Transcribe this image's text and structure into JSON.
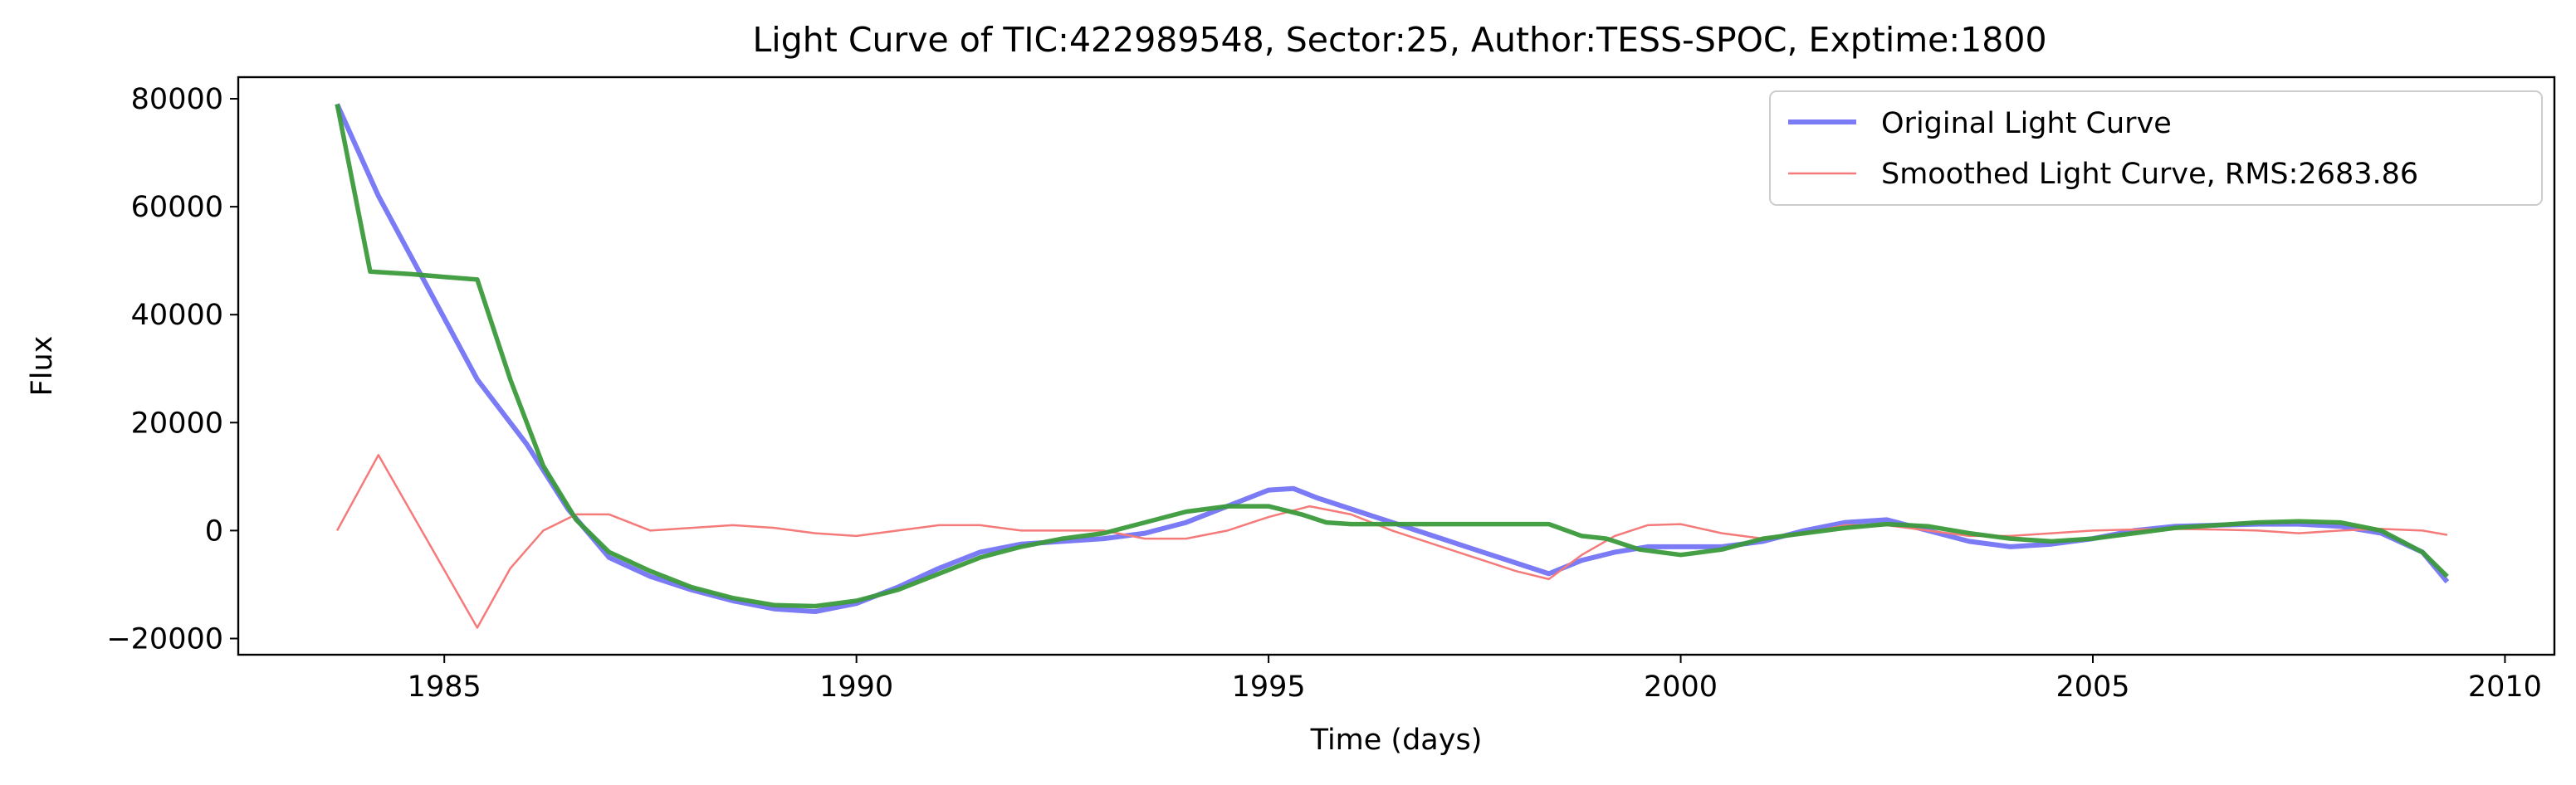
{
  "chart_data": {
    "type": "line",
    "title": "Light Curve of TIC:422989548, Sector:25, Author:TESS-SPOC, Exptime:1800",
    "xlabel": "Time (days)",
    "ylabel": "Flux",
    "xlim": [
      1982.5,
      2010.6
    ],
    "ylim": [
      -23000,
      84000
    ],
    "xticks": [
      1985,
      1990,
      1995,
      2000,
      2005,
      2010
    ],
    "yticks": [
      -20000,
      0,
      20000,
      40000,
      60000,
      80000
    ],
    "grid": false,
    "legend_position": "top-right",
    "series": [
      {
        "name": "Original Light Curve",
        "color": "#7b7bf5",
        "x": [
          1983.7,
          1984.2,
          1984.8,
          1985.4,
          1986.0,
          1986.5,
          1987.0,
          1987.5,
          1988.0,
          1988.5,
          1989.0,
          1989.5,
          1990.0,
          1990.5,
          1991.0,
          1991.5,
          1992.0,
          1992.5,
          1993.0,
          1993.5,
          1994.0,
          1994.5,
          1995.0,
          1995.3,
          1995.6,
          1996.0,
          1996.5,
          1997.0,
          1997.5,
          1998.0,
          1998.4,
          1998.8,
          1999.2,
          1999.6,
          2000.0,
          2000.5,
          2001.0,
          2001.5,
          2002.0,
          2002.5,
          2003.0,
          2003.5,
          2004.0,
          2004.5,
          2005.0,
          2005.5,
          2006.0,
          2006.5,
          2007.0,
          2007.5,
          2008.0,
          2008.5,
          2009.0,
          2009.3
        ],
        "y": [
          79000,
          62000,
          45000,
          28000,
          16000,
          4000,
          -5000,
          -8500,
          -11000,
          -13000,
          -14500,
          -15000,
          -13500,
          -10500,
          -7000,
          -4000,
          -2500,
          -2000,
          -1500,
          -500,
          1500,
          4500,
          7500,
          7800,
          6000,
          4000,
          1500,
          -1000,
          -3500,
          -6000,
          -8000,
          -5500,
          -4000,
          -3000,
          -3000,
          -3000,
          -2000,
          0,
          1500,
          2000,
          0,
          -2000,
          -3000,
          -2500,
          -1500,
          0,
          800,
          1000,
          1200,
          1200,
          800,
          -500,
          -4000,
          -9500
        ]
      },
      {
        "name": "Smoothed Light Curve, RMS:2683.86",
        "color": "#f57a7a",
        "x": [
          1983.7,
          1984.2,
          1984.8,
          1985.4,
          1985.8,
          1986.2,
          1986.6,
          1987.0,
          1987.5,
          1988.0,
          1988.5,
          1989.0,
          1989.5,
          1990.0,
          1990.5,
          1991.0,
          1991.5,
          1992.0,
          1992.5,
          1993.0,
          1993.5,
          1994.0,
          1994.5,
          1995.0,
          1995.5,
          1996.0,
          1996.5,
          1997.0,
          1997.5,
          1998.0,
          1998.4,
          1998.8,
          1999.2,
          1999.6,
          2000.0,
          2000.5,
          2001.0,
          2001.5,
          2002.0,
          2002.5,
          2003.0,
          2003.5,
          2004.0,
          2004.5,
          2005.0,
          2005.5,
          2006.0,
          2006.5,
          2007.0,
          2007.5,
          2008.0,
          2008.5,
          2009.0,
          2009.3
        ],
        "y": [
          0,
          14000,
          -2000,
          -18000,
          -7000,
          0,
          3000,
          3000,
          0,
          500,
          1000,
          500,
          -500,
          -1000,
          0,
          1000,
          1000,
          0,
          0,
          0,
          -1500,
          -1500,
          0,
          2500,
          4500,
          3000,
          0,
          -2500,
          -5000,
          -7500,
          -9000,
          -4500,
          -1000,
          1000,
          1200,
          -500,
          -1500,
          -500,
          1000,
          1000,
          0,
          -1000,
          -1000,
          -500,
          0,
          200,
          300,
          200,
          0,
          -500,
          0,
          300,
          0,
          -800
        ]
      },
      {
        "name": "",
        "color": "#3b9a3b",
        "x": [
          1983.7,
          1984.1,
          1984.6,
          1985.0,
          1985.4,
          1985.8,
          1986.2,
          1986.6,
          1987.0,
          1987.5,
          1988.0,
          1988.5,
          1989.0,
          1989.5,
          1990.0,
          1990.5,
          1991.0,
          1991.5,
          1992.0,
          1992.5,
          1993.0,
          1993.5,
          1994.0,
          1994.5,
          1995.0,
          1995.4,
          1995.7,
          1996.0,
          1996.5,
          1997.0,
          1997.5,
          1998.0,
          1998.4,
          1998.8,
          1999.1,
          1999.5,
          2000.0,
          2000.5,
          2001.0,
          2001.5,
          2002.0,
          2002.5,
          2003.0,
          2003.5,
          2004.0,
          2004.5,
          2005.0,
          2005.5,
          2006.0,
          2006.5,
          2007.0,
          2007.5,
          2008.0,
          2008.5,
          2009.0,
          2009.3
        ],
        "y": [
          79000,
          48000,
          47500,
          47000,
          46500,
          28000,
          12000,
          2000,
          -4000,
          -7500,
          -10500,
          -12500,
          -13800,
          -14000,
          -13000,
          -11000,
          -8000,
          -5000,
          -3000,
          -1500,
          -500,
          1500,
          3500,
          4500,
          4500,
          3000,
          1500,
          1200,
          1200,
          1200,
          1200,
          1200,
          1200,
          -1000,
          -1500,
          -3500,
          -4500,
          -3500,
          -1500,
          -500,
          500,
          1200,
          800,
          -500,
          -1500,
          -2000,
          -1500,
          -500,
          500,
          1000,
          1500,
          1700,
          1500,
          0,
          -4000,
          -8500
        ]
      }
    ]
  }
}
